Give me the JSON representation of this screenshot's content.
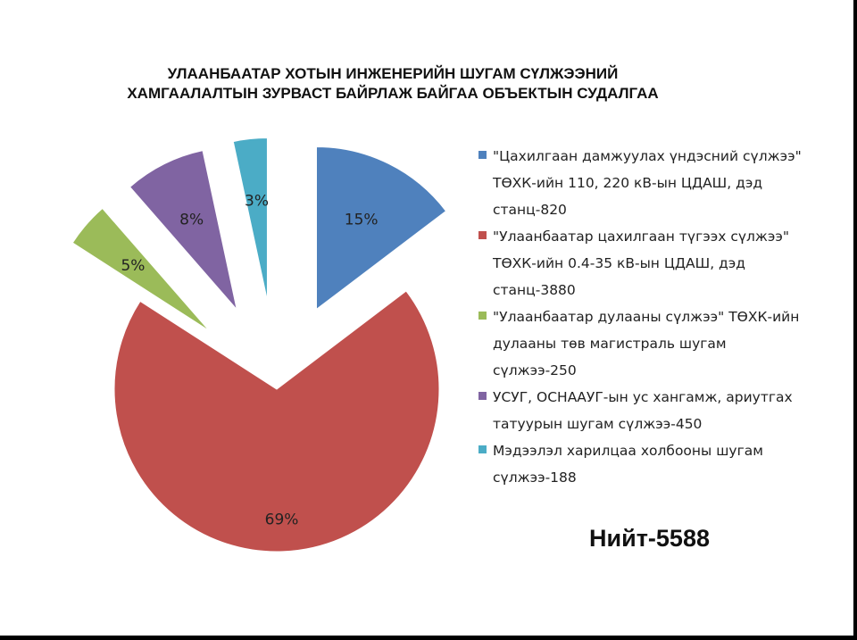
{
  "title_lines": [
    "УЛААНБААТАР ХОТЫН ИНЖЕНЕРИЙН ШУГАМ СҮЛЖЭЭНИЙ",
    "ХАМГААЛАЛТЫН ЗУРВАСТ БАЙРЛАЖ БАЙГАА ОБЪЕКТЫН СУДАЛГАА"
  ],
  "total_label": "Нийт-5588",
  "chart_data": {
    "type": "pie",
    "title": "УЛААНБААТАР ХОТЫН ИНЖЕНЕРИЙН ШУГАМ СҮЛЖЭЭНИЙ ХАМГААЛАЛТЫН ЗУРВАСТ БАЙРЛАЖ БАЙГАА ОБЪЕКТЫН СУДАЛГАА",
    "legend_position": "right",
    "slices": [
      {
        "label": "\"Цахилгаан дамжуулах үндэсний сүлжээ\" ТӨХК-ийн 110, 220 кВ-ын ЦДАШ, дэд станц-820",
        "value": 820,
        "percent_label": "15%",
        "color": "#4f81bd",
        "exploded": true
      },
      {
        "label": "\"Улаанбаатар цахилгаан түгээх сүлжээ\" ТӨХК-ийн 0.4-35 кВ-ын ЦДАШ, дэд станц-3880",
        "value": 3880,
        "percent_label": "69%",
        "color": "#c0504d",
        "exploded": false
      },
      {
        "label": "\"Улаанбаатар дулааны сүлжээ\" ТӨХК-ийн дулааны төв магистраль шугам сүлжээ-250",
        "value": 250,
        "percent_label": "5%",
        "color": "#9bbb59",
        "exploded": true
      },
      {
        "label": "УСУГ, ОСНААУГ-ын ус хангамж, ариутгах татуурын шугам сүлжээ-450",
        "value": 450,
        "percent_label": "8%",
        "color": "#8064a2",
        "exploded": true
      },
      {
        "label": "Мэдээлэл харилцаа холбооны шугам сүлжээ-188",
        "value": 188,
        "percent_label": "3%",
        "color": "#4bacc6",
        "exploded": true
      }
    ]
  }
}
